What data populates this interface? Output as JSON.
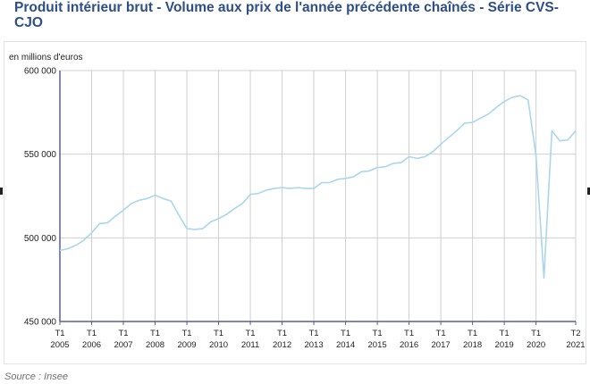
{
  "title": "Produit intérieur brut - Volume aux prix de l'année précédente chaînés - Série CVS-CJO",
  "source": "Source : Insee",
  "colors": {
    "title": "#2e4e86",
    "line": "#a9d6ec",
    "grid": "#cfcfcf",
    "axis": "#5b5e8f"
  },
  "chart_data": {
    "type": "line",
    "title": "Produit intérieur brut - Volume aux prix de l'année précédente chaînés - Série CVS-CJO",
    "unit_label": "en millions d'euros",
    "ylim": [
      450000,
      600000
    ],
    "yticks": [
      450000,
      500000,
      550000,
      600000
    ],
    "ytick_labels": [
      "450 000",
      "500 000",
      "550 000",
      "600 000"
    ],
    "xtick_labels": [
      {
        "index": 0,
        "q": "T1",
        "y": "2005"
      },
      {
        "index": 4,
        "q": "T1",
        "y": "2006"
      },
      {
        "index": 8,
        "q": "T1",
        "y": "2007"
      },
      {
        "index": 12,
        "q": "T1",
        "y": "2008"
      },
      {
        "index": 16,
        "q": "T1",
        "y": "2009"
      },
      {
        "index": 20,
        "q": "T1",
        "y": "2010"
      },
      {
        "index": 24,
        "q": "T1",
        "y": "2011"
      },
      {
        "index": 28,
        "q": "T1",
        "y": "2012"
      },
      {
        "index": 32,
        "q": "T1",
        "y": "2013"
      },
      {
        "index": 36,
        "q": "T1",
        "y": "2014"
      },
      {
        "index": 40,
        "q": "T1",
        "y": "2015"
      },
      {
        "index": 44,
        "q": "T1",
        "y": "2016"
      },
      {
        "index": 48,
        "q": "T1",
        "y": "2017"
      },
      {
        "index": 52,
        "q": "T1",
        "y": "2018"
      },
      {
        "index": 56,
        "q": "T1",
        "y": "2019"
      },
      {
        "index": 60,
        "q": "T1",
        "y": "2020"
      },
      {
        "index": 65,
        "q": "T2",
        "y": "2021"
      }
    ],
    "grid": true,
    "legend": "none",
    "series": [
      {
        "x_start": "2005-T1",
        "x_end": "2021-T2",
        "values": [
          492500,
          493500,
          495500,
          498500,
          503000,
          508500,
          509000,
          513000,
          516500,
          520500,
          522500,
          523500,
          525500,
          523500,
          522000,
          513500,
          505500,
          505000,
          505500,
          509500,
          511500,
          514000,
          517500,
          520500,
          526000,
          526500,
          528500,
          529500,
          530000,
          529500,
          530000,
          529500,
          529500,
          533000,
          533000,
          535000,
          535500,
          536500,
          539500,
          540000,
          542000,
          542500,
          544500,
          545000,
          548500,
          547500,
          548500,
          551500,
          556000,
          560000,
          564000,
          568500,
          569000,
          571500,
          574000,
          578000,
          581500,
          584000,
          585000,
          582500,
          549000,
          476000,
          564000,
          558000,
          558500,
          564000
        ]
      }
    ]
  }
}
